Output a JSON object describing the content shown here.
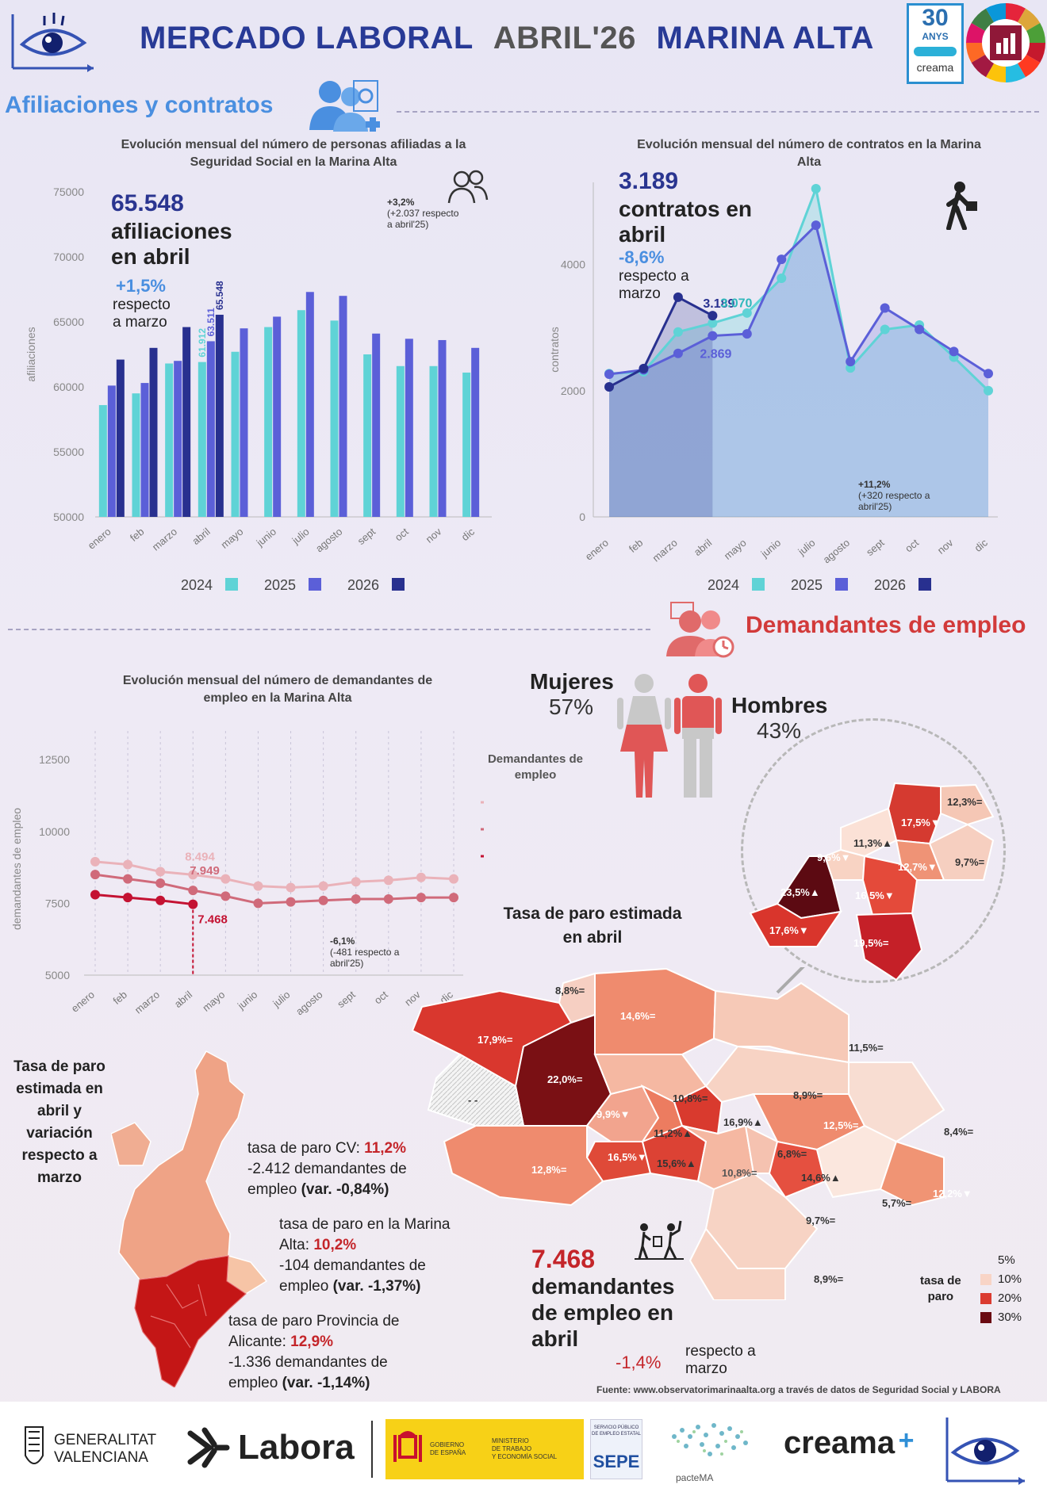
{
  "header": {
    "title_part1": "MERCADO LABORAL",
    "title_part2": "ABRIL'26",
    "title_part3": "MARINA ALTA",
    "badge_line1": "30",
    "badge_line2": "ANYS",
    "badge_brand": "creama"
  },
  "sections": {
    "affiliations": "Afiliaciones y contratos",
    "jobseekers": "Demandantes de empleo"
  },
  "affil_chart": {
    "title_line1": "Evolución mensual del número de personas afiliadas a la",
    "title_line2": "Seguridad Social en la Marina Alta",
    "ylabel": "afiliaciones",
    "big_number": "65.548",
    "big_text1": "afiliaciones",
    "big_text2": "en abril",
    "pct": "+1,5%",
    "pct_text1": "respecto",
    "pct_text2": "a marzo",
    "note_line1": "+3,2%",
    "note_line2": "(+2.037 respecto",
    "note_line3": "a abril'25)"
  },
  "contracts_chart": {
    "title_line1": "Evolución mensual del número de contratos en la Marina",
    "title_line2": "Alta",
    "ylabel": "contratos",
    "big_number": "3.189",
    "big_text1": "contratos en",
    "big_text2": "abril",
    "pct": "-8,6%",
    "pct_text1": "respecto a",
    "pct_text2": "marzo",
    "note_line1": "+11,2%",
    "note_line2": "(+320 respecto a",
    "note_line3": "abril'25)"
  },
  "demand_chart": {
    "title_line1": "Evolución mensual del número de demandantes de",
    "title_line2": "empleo en la Marina Alta",
    "ylabel": "demandantes de empleo",
    "legend_title1": "Demandantes de",
    "legend_title2": "empleo",
    "note_line1": "-6,1%",
    "note_line2": "(-481 respecto a",
    "note_line3": "abril'25)"
  },
  "chart_data": [
    {
      "type": "bar",
      "title": "Evolución mensual del número de personas afiliadas a la Seguridad Social en la Marina Alta",
      "ylabel": "afiliaciones",
      "ylim": [
        50000,
        75000
      ],
      "yticks": [
        "50000",
        "55000",
        "60000",
        "65000",
        "70000",
        "75000"
      ],
      "categories": [
        "enero",
        "feb",
        "marzo",
        "abril",
        "mayo",
        "junio",
        "julio",
        "agosto",
        "sept",
        "oct",
        "nov",
        "dic"
      ],
      "series": [
        {
          "name": "2024",
          "color": "#5fd3d6",
          "values": [
            58600,
            59500,
            61800,
            61912,
            62700,
            64600,
            65900,
            65100,
            62500,
            61600,
            61600,
            61100
          ]
        },
        {
          "name": "2025",
          "color": "#5b5fd8",
          "values": [
            60100,
            60300,
            62000,
            63511,
            64500,
            65400,
            67300,
            67000,
            64100,
            63700,
            63600,
            63000
          ]
        },
        {
          "name": "2026",
          "color": "#28308f",
          "values": [
            62100,
            63000,
            64600,
            65548,
            null,
            null,
            null,
            null,
            null,
            null,
            null,
            null
          ]
        }
      ],
      "data_labels": [
        "61.912",
        "63.511",
        "65.548"
      ],
      "legend": "bottom"
    },
    {
      "type": "area",
      "title": "Evolución mensual del número de contratos en la Marina Alta",
      "ylabel": "contratos",
      "ylim": [
        0,
        5300
      ],
      "yticks": [
        "0",
        "2000",
        "4000"
      ],
      "categories": [
        "enero",
        "feb",
        "marzo",
        "abril",
        "mayo",
        "junio",
        "julio",
        "agosto",
        "sept",
        "oct",
        "nov",
        "dic"
      ],
      "series": [
        {
          "name": "2024",
          "color": "#5fd3d6",
          "values": [
            2270,
            2300,
            2930,
            3070,
            3230,
            3780,
            5200,
            2360,
            2970,
            3040,
            2530,
            2000
          ]
        },
        {
          "name": "2025",
          "color": "#5b5fd8",
          "values": [
            2260,
            2330,
            2590,
            2869,
            2900,
            4080,
            4620,
            2460,
            3310,
            2970,
            2620,
            2270
          ]
        },
        {
          "name": "2026",
          "color": "#28308f",
          "values": [
            2060,
            2350,
            3480,
            3189,
            null,
            null,
            null,
            null,
            null,
            null,
            null,
            null
          ]
        }
      ],
      "data_labels": [
        "3.189",
        "3.070",
        "2.869"
      ],
      "legend": "bottom"
    },
    {
      "type": "line",
      "title": "Evolución mensual del número de demandantes de empleo en la Marina Alta",
      "ylabel": "demandantes de empleo",
      "ylim": [
        5000,
        13500
      ],
      "yticks": [
        "5000",
        "7500",
        "10000",
        "12500"
      ],
      "categories": [
        "enero",
        "feb",
        "marzo",
        "abril",
        "mayo",
        "junio",
        "julio",
        "agosto",
        "sept",
        "oct",
        "nov",
        "dic"
      ],
      "series": [
        {
          "name": "2024",
          "color": "#eab2b9",
          "values": [
            8950,
            8850,
            8600,
            8494,
            8350,
            8100,
            8050,
            8100,
            8250,
            8300,
            8400,
            8350
          ]
        },
        {
          "name": "2025",
          "color": "#d06a7a",
          "values": [
            8500,
            8350,
            8200,
            7949,
            7750,
            7500,
            7550,
            7600,
            7650,
            7650,
            7700,
            7700
          ]
        },
        {
          "name": "2026",
          "color": "#c41232",
          "values": [
            7800,
            7700,
            7600,
            7468,
            null,
            null,
            null,
            null,
            null,
            null,
            null,
            null
          ]
        }
      ],
      "data_labels": [
        "8.494",
        "7.949",
        "7.468"
      ],
      "legend": "right"
    }
  ],
  "gender": {
    "women_label": "Mujeres",
    "women_pct": "57%",
    "men_label": "Hombres",
    "men_pct": "43%"
  },
  "map_marina": {
    "title_line1": "Tasa de paro estimada",
    "title_line2": "en abril",
    "labels": [
      "8,8%=",
      "14,6%=",
      "17,9%=",
      "22,0%=",
      "- -",
      "9,9%▼",
      "10,8%=",
      "11,2%▲",
      "16,9%▲",
      "16,5%▼",
      "15,6%▲",
      "10,8%=",
      "12,8%=",
      "11,5%=",
      "8,9%=",
      "12,5%=",
      "8,4%=",
      "6,8%=",
      "14,6%▲",
      "9,7%=",
      "5,7%=",
      "12,2%▼",
      "8,9%="
    ],
    "inset_labels": [
      "12,3%=",
      "17,5%▼",
      "11,3%▲",
      "9,6%▼",
      "9,7%=",
      "12,7%▼",
      "23,5%▲",
      "16,5%▼",
      "17,6%▼",
      "19,5%="
    ]
  },
  "cv_map": {
    "title_line1": "Tasa de paro",
    "title_line2": "estimada en",
    "title_line3": "abril y",
    "title_line4": "variación",
    "title_line5": "respecto a",
    "title_line6": "marzo",
    "cv_prefix": "tasa de paro CV: ",
    "cv_value": "11,2%",
    "cv_line2": "-2.412 demandantes de",
    "cv_line3_a": "empleo ",
    "cv_line3_b": "(var. -0,84%)",
    "ma_line1": "tasa de paro en la Marina",
    "ma_prefix": "Alta: ",
    "ma_value": "10,2%",
    "ma_line3": "-104 demandantes de",
    "ma_line4_a": "empleo ",
    "ma_line4_b": "(var. -1,37%)",
    "al_line1": "tasa de paro Provincia de",
    "al_prefix": "Alicante: ",
    "al_value": "12,9%",
    "al_line3": "-1.336 demandantes de",
    "al_line4_a": "empleo ",
    "al_line4_b": "(var. -1,14%)"
  },
  "jobseekers_summary": {
    "number": "7.468",
    "text1": "demandantes",
    "text2": "de empleo en",
    "text3": "abril",
    "pct": "-1,4%",
    "pct_text1": "respecto a",
    "pct_text2": "marzo"
  },
  "rate_legend": {
    "title1": "tasa de",
    "title2": "paro",
    "items": [
      "5%",
      "10%",
      "20%",
      "30%"
    ]
  },
  "source": "Fuente: www.observatorimarinaalta.org a través de datos de Seguridad Social y LABORA",
  "footer": {
    "gva1": "GENERALITAT",
    "gva2": "VALENCIANA",
    "labora": "Labora",
    "gob1": "GOBIERNO",
    "gob2": "DE ESPAÑA",
    "min1": "MINISTERIO",
    "min2": "DE TRABAJO",
    "min3": "Y ECONOMÍA SOCIAL",
    "sepe_small1": "SERVICIO PÚBLICO",
    "sepe_small2": "DE EMPLEO ESTATAL",
    "sepe": "SEPE",
    "pacte": "pacteMA",
    "creama": "creama"
  },
  "colors": {
    "title_blue": "#283a96",
    "section_blue": "#4a8fe0",
    "section_red": "#d23a3a",
    "teal_2024": "#5fd3d6",
    "violet_2025": "#5b5fd8",
    "navy_2026": "#28308f",
    "pink_2024": "#eab2b9",
    "rose_2025": "#d06a7a",
    "crimson_2026": "#c41232"
  }
}
